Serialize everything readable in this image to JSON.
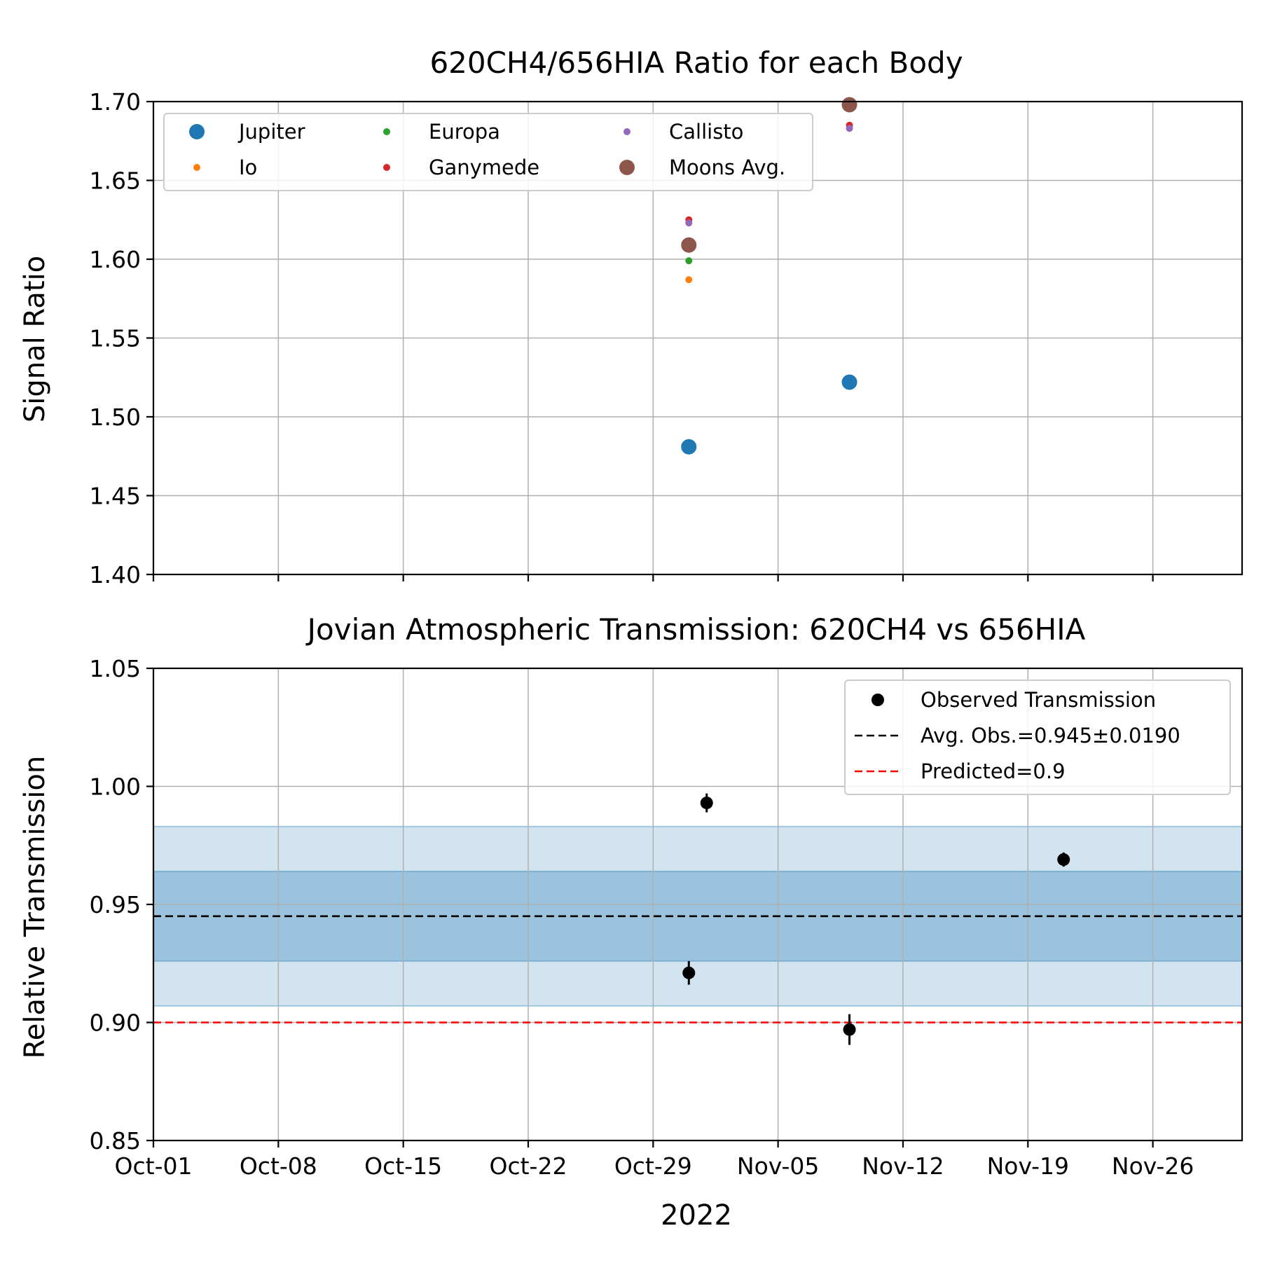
{
  "x_axis": {
    "label": "2022",
    "range": [
      "2022-10-01",
      "2022-12-01"
    ],
    "ticks": [
      {
        "date": "2022-10-01",
        "label": "Oct-01"
      },
      {
        "date": "2022-10-08",
        "label": "Oct-08"
      },
      {
        "date": "2022-10-15",
        "label": "Oct-15"
      },
      {
        "date": "2022-10-22",
        "label": "Oct-22"
      },
      {
        "date": "2022-10-29",
        "label": "Oct-29"
      },
      {
        "date": "2022-11-05",
        "label": "Nov-05"
      },
      {
        "date": "2022-11-12",
        "label": "Nov-12"
      },
      {
        "date": "2022-11-19",
        "label": "Nov-19"
      },
      {
        "date": "2022-11-26",
        "label": "Nov-26"
      }
    ]
  },
  "chart_data": [
    {
      "type": "scatter",
      "title": "620CH4/656HIA Ratio for each Body",
      "xlabel": "",
      "ylabel": "Signal Ratio",
      "ylim": [
        1.4,
        1.7
      ],
      "yticks": [
        "1.40",
        "1.45",
        "1.50",
        "1.55",
        "1.60",
        "1.65",
        "1.70"
      ],
      "grid": true,
      "legend": "upper-left",
      "legend_columns": 3,
      "series": [
        {
          "name": "Jupiter",
          "color": "#1f77b4",
          "size": "large",
          "points": [
            {
              "x": "2022-10-31",
              "y": 1.481
            },
            {
              "x": "2022-11-09",
              "y": 1.522
            }
          ]
        },
        {
          "name": "Io",
          "color": "#ff7f0e",
          "size": "small",
          "points": [
            {
              "x": "2022-10-31",
              "y": 1.587
            }
          ]
        },
        {
          "name": "Europa",
          "color": "#2ca02c",
          "size": "small",
          "points": [
            {
              "x": "2022-10-31",
              "y": 1.599
            }
          ]
        },
        {
          "name": "Ganymede",
          "color": "#d62728",
          "size": "small",
          "points": [
            {
              "x": "2022-10-31",
              "y": 1.625
            },
            {
              "x": "2022-11-09",
              "y": 1.685
            }
          ]
        },
        {
          "name": "Callisto",
          "color": "#9467bd",
          "size": "small",
          "points": [
            {
              "x": "2022-10-31",
              "y": 1.623
            },
            {
              "x": "2022-11-09",
              "y": 1.683
            }
          ]
        },
        {
          "name": "Moons Avg.",
          "color": "#8c564b",
          "size": "large",
          "points": [
            {
              "x": "2022-10-31",
              "y": 1.609
            },
            {
              "x": "2022-11-09",
              "y": 1.698
            }
          ]
        }
      ]
    },
    {
      "type": "scatter",
      "title": "Jovian Atmospheric Transmission: 620CH4 vs 656HIA",
      "xlabel": "2022",
      "ylabel": "Relative Transmission",
      "ylim": [
        0.85,
        1.05
      ],
      "yticks": [
        "0.85",
        "0.90",
        "0.95",
        "1.00",
        "1.05"
      ],
      "grid": true,
      "legend": "upper-right",
      "bands": [
        {
          "lower": 0.926,
          "upper": 0.964,
          "color": "#1f77b4",
          "opacity": 0.3
        },
        {
          "lower": 0.907,
          "upper": 0.983,
          "color": "#1f77b4",
          "opacity": 0.2
        }
      ],
      "series": [
        {
          "name": "Observed Transmission",
          "color": "#000000",
          "points": [
            {
              "x": "2022-10-31",
              "y": 0.921,
              "err": 0.005
            },
            {
              "x": "2022-11-01",
              "y": 0.993,
              "err": 0.004
            },
            {
              "x": "2022-11-09",
              "y": 0.897,
              "err": 0.0065
            },
            {
              "x": "2022-11-21",
              "y": 0.969,
              "err": 0.003
            }
          ]
        }
      ],
      "hlines": [
        {
          "name": "Avg. Obs.=0.945±0.0190",
          "y": 0.945,
          "color": "#000000"
        },
        {
          "name": "Predicted=0.9",
          "y": 0.9,
          "color": "#ff0000"
        }
      ]
    }
  ]
}
